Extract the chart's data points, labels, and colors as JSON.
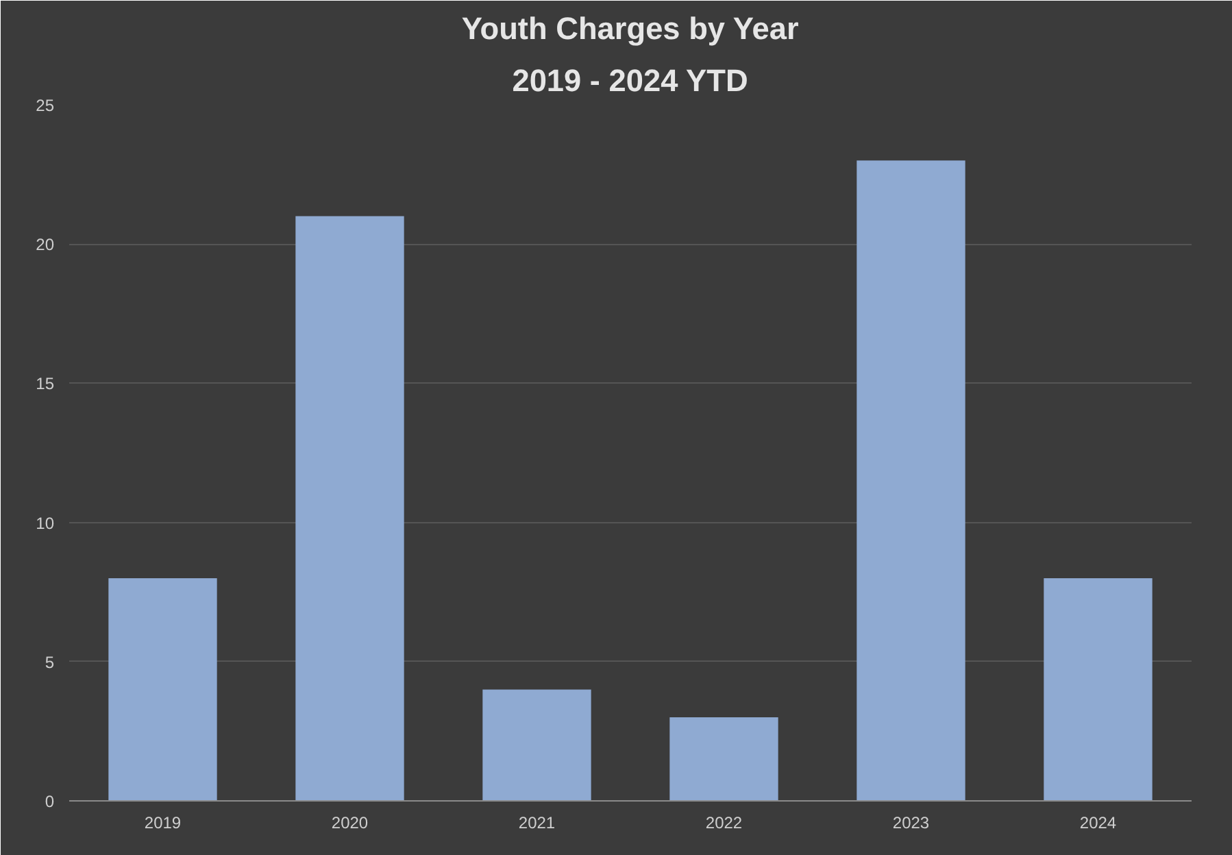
{
  "chart_data": {
    "type": "bar",
    "title": "Youth Charges by Year",
    "subtitle": "2019 - 2024 YTD",
    "categories": [
      "2019",
      "2020",
      "2021",
      "2022",
      "2023",
      "2024"
    ],
    "values": [
      8,
      21,
      4,
      3,
      23,
      8
    ],
    "color": "#8faad2",
    "ylim": [
      0,
      25
    ],
    "yticks": [
      0,
      5,
      10,
      15,
      20,
      25
    ],
    "grid": "y"
  }
}
